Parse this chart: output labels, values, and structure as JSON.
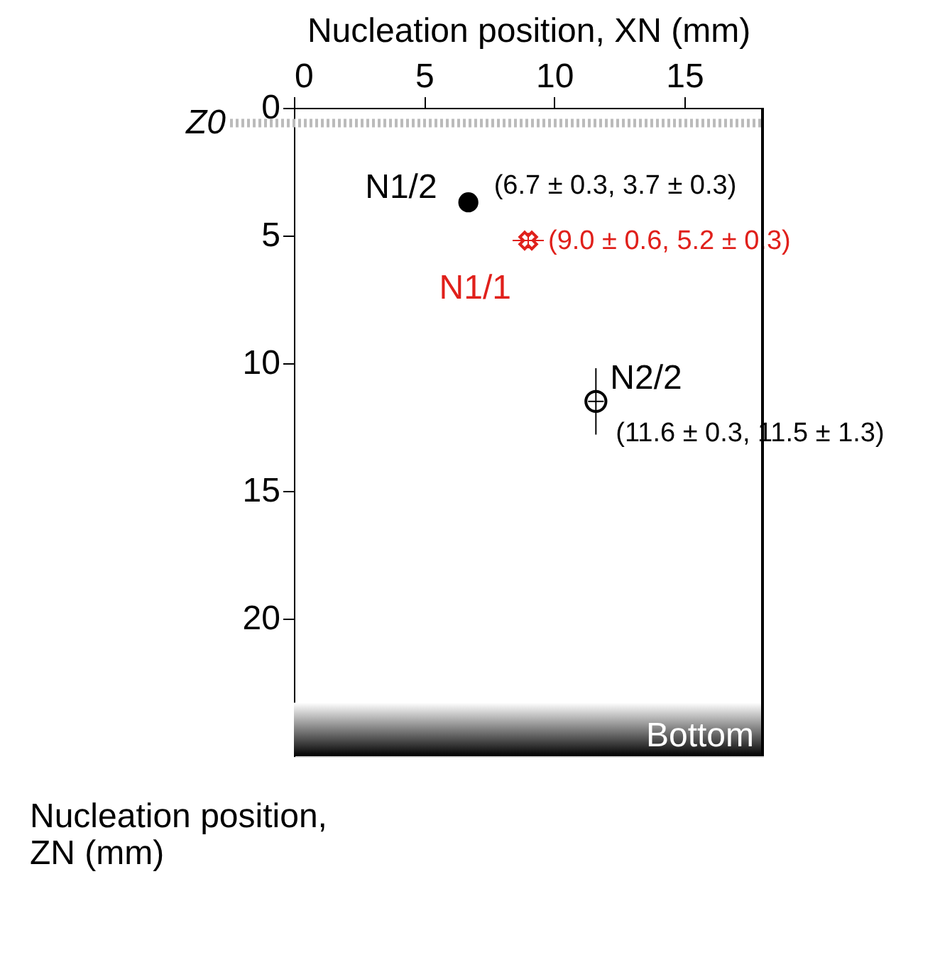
{
  "chart_data": {
    "type": "scatter",
    "xlabel": "Nucleation position, XN (mm)",
    "ylabel": "Nucleation position, ZN (mm)",
    "xlim": [
      0,
      18
    ],
    "xticks": [
      0,
      5,
      10,
      15
    ],
    "ylim": [
      25.4,
      0
    ],
    "yticks": [
      0,
      5,
      10,
      15,
      20
    ],
    "grid": false,
    "legend": false,
    "series": [
      {
        "name": "N1/2",
        "color": "#000000",
        "marker": "circle",
        "x": [
          6.7
        ],
        "values": [
          3.7
        ],
        "xerrors": [
          0.3
        ],
        "errors": [
          0.3
        ]
      },
      {
        "name": "N1/1",
        "color": "#e0201b",
        "marker": "cross",
        "x": [
          9.0
        ],
        "values": [
          5.2
        ],
        "xerrors": [
          0.6
        ],
        "errors": [
          0.3
        ]
      },
      {
        "name": "N2/2",
        "color": "#000000",
        "marker": "circle",
        "x": [
          11.6
        ],
        "values": [
          11.5
        ],
        "xerrors": [
          0.3
        ],
        "errors": [
          1.3
        ]
      }
    ],
    "annotations": [
      {
        "text": "(6.7 ± 0.3, 3.7 ± 0.3)",
        "x": 6.7,
        "y": 3.7
      },
      {
        "text": "(9.0 ± 0.6, 5.2 ± 0.3)",
        "x": 9.0,
        "y": 5.2
      },
      {
        "text": "(11.6 ± 0.3, 11.5 ± 1.3)",
        "x": 11.6,
        "y": 11.5
      }
    ],
    "ref_lines": [
      {
        "axis": "y",
        "value": 0.6,
        "label": "Z0",
        "color": "#bbbbbb",
        "line_style": "dotted"
      }
    ],
    "bands": [
      {
        "axis": "y",
        "from": 23.3,
        "to": 25.4,
        "label": "Bottom",
        "color": "#000000"
      }
    ]
  }
}
